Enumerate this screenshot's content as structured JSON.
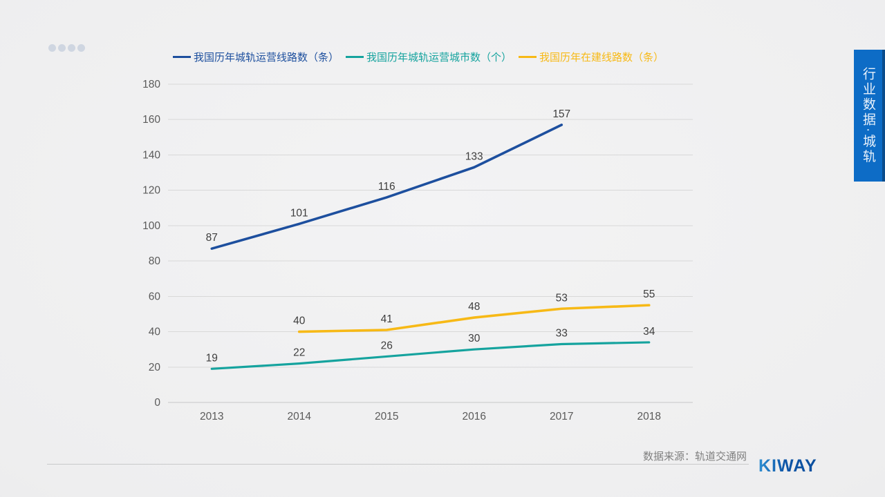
{
  "side_banner": {
    "text": "行业数据·城轨",
    "bg_color": "#0d6cc6"
  },
  "footer": {
    "source": "数据来源：轨道交通网",
    "logo": "KIWAY"
  },
  "colors": {
    "line1": "#1d4f9e",
    "line2": "#15a39e",
    "line3": "#f7b916",
    "grid": "#d8d8d8",
    "axis_text": "#5a5a5a",
    "data_label": "#3d3d3d"
  },
  "chart_data": {
    "type": "line",
    "categories": [
      "2013",
      "2014",
      "2015",
      "2016",
      "2017",
      "2018"
    ],
    "series": [
      {
        "name": "我国历年城轨运营线路数（条）",
        "color": "#1d4f9e",
        "values": [
          87,
          101,
          116,
          133,
          157,
          null
        ]
      },
      {
        "name": "我国历年城轨运营城市数（个）",
        "color": "#15a39e",
        "values": [
          19,
          22,
          26,
          30,
          33,
          34
        ]
      },
      {
        "name": "我国历年在建线路数（条）",
        "color": "#f7b916",
        "values": [
          null,
          40,
          41,
          48,
          53,
          55
        ]
      }
    ],
    "title": "",
    "xlabel": "",
    "ylabel": "",
    "ylim": [
      0,
      180
    ],
    "ytick_step": 20,
    "grid": true,
    "legend_position": "top"
  }
}
